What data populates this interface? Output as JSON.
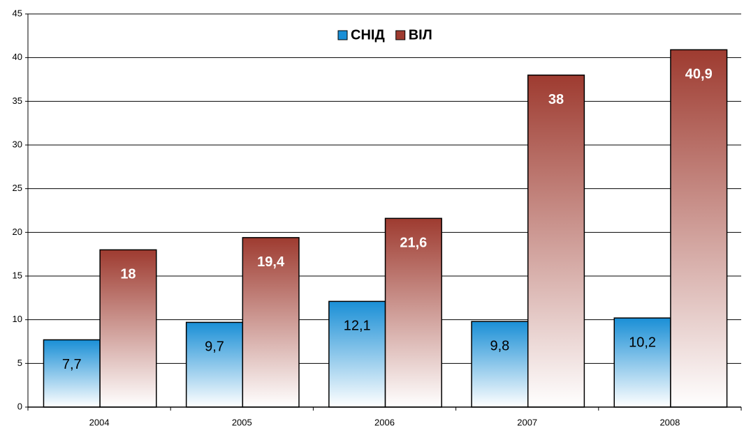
{
  "chart_data": {
    "type": "bar",
    "categories": [
      "2004",
      "2005",
      "2006",
      "2007",
      "2008"
    ],
    "series": [
      {
        "name": "СНІД",
        "color": "#1a8fd6",
        "values": [
          7.7,
          9.7,
          12.1,
          9.8,
          10.2
        ],
        "value_labels": [
          "7,7",
          "9,7",
          "12,1",
          "9,8",
          "10,2"
        ]
      },
      {
        "name": "ВІЛ",
        "color": "#9e3b30",
        "values": [
          18,
          19.4,
          21.6,
          38,
          40.9
        ],
        "value_labels": [
          "18",
          "19,4",
          "21,6",
          "38",
          "40,9"
        ]
      }
    ],
    "ylim": [
      0,
      45
    ],
    "yticks": [
      0,
      5,
      10,
      15,
      20,
      25,
      30,
      35,
      40,
      45
    ],
    "grid": true,
    "legend": "top"
  }
}
